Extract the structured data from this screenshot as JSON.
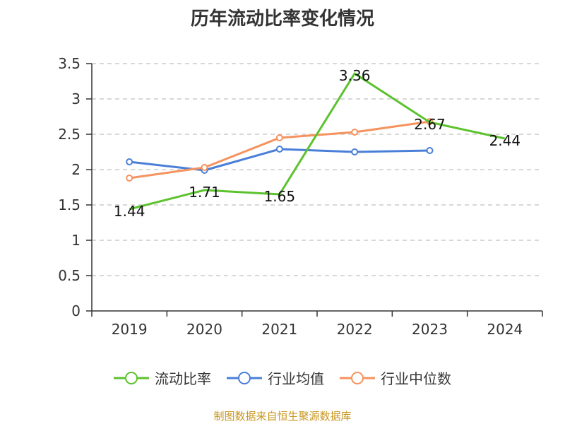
{
  "title": "历年流动比率变化情况",
  "source": "制图数据来自恒生聚源数据库",
  "chart_data": {
    "type": "line",
    "title": "历年流动比率变化情况",
    "categories": [
      "2019",
      "2020",
      "2021",
      "2022",
      "2023",
      "2024"
    ],
    "ylim": [
      0,
      3.5
    ],
    "yticks": [
      0,
      0.5,
      1,
      1.5,
      2,
      2.5,
      3,
      3.5
    ],
    "ytick_labels": [
      "0",
      "0.5",
      "1",
      "1.5",
      "2",
      "2.5",
      "3",
      "3.5"
    ],
    "grid": true,
    "legend_position": "bottom",
    "series": [
      {
        "name": "流动比率",
        "color": "#5cc22e",
        "values": [
          1.44,
          1.71,
          1.65,
          3.36,
          2.67,
          2.44
        ],
        "labels": [
          "1.44",
          "1.71",
          "1.65",
          "3.36",
          "2.67",
          "2.44"
        ]
      },
      {
        "name": "行业均值",
        "color": "#4a7fd8",
        "values": [
          2.11,
          1.99,
          2.29,
          2.25,
          2.27,
          null
        ]
      },
      {
        "name": "行业中位数",
        "color": "#f5935e",
        "values": [
          1.88,
          2.03,
          2.45,
          2.53,
          2.68,
          null
        ]
      }
    ]
  }
}
